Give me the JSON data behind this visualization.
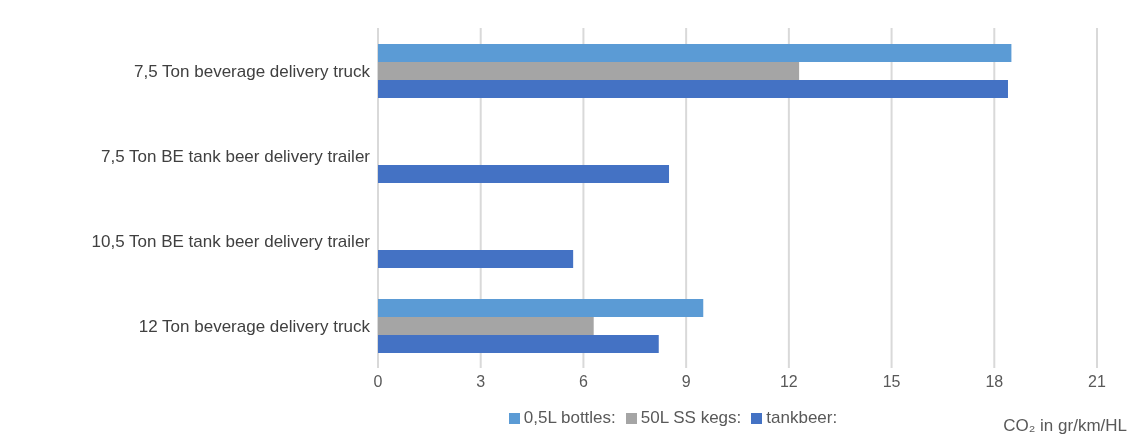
{
  "chart_data": {
    "type": "bar",
    "orientation": "horizontal",
    "categories": [
      "7,5 Ton beverage delivery truck",
      "7,5 Ton BE tank beer delivery trailer",
      "10,5 Ton BE tank beer delivery trailer",
      "12 Ton beverage delivery truck"
    ],
    "series": [
      {
        "name": "0,5L bottles:",
        "color": "#5b9bd5",
        "values": [
          18.5,
          null,
          null,
          9.5
        ]
      },
      {
        "name": "50L SS kegs:",
        "color": "#a5a5a5",
        "values": [
          12.3,
          null,
          null,
          6.3
        ]
      },
      {
        "name": "tankbeer:",
        "color": "#4472c4",
        "values": [
          18.4,
          8.5,
          5.7,
          8.2
        ]
      }
    ],
    "xlabel": "CO₂ in gr/km/HL",
    "xlim": [
      0,
      21
    ],
    "xticks": [
      0,
      3,
      6,
      9,
      12,
      15,
      18,
      21
    ],
    "grid": "x",
    "legend": "bottom"
  }
}
